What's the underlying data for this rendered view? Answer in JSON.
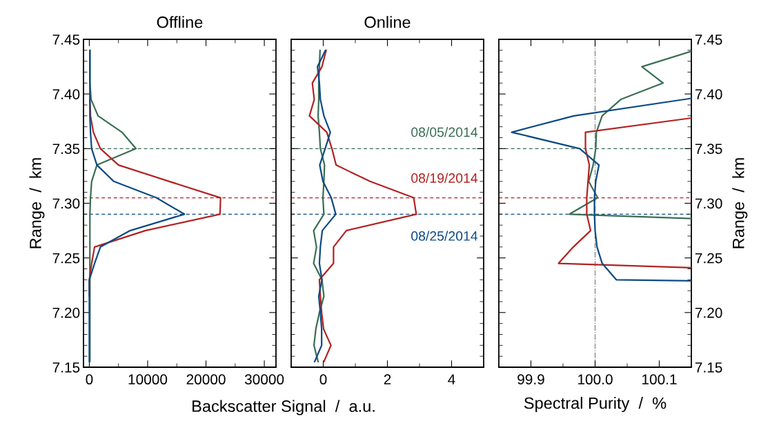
{
  "chart_data": [
    {
      "type": "line",
      "orientation": "horizontal",
      "title": "Offline",
      "xlabel": "Backscatter Signal  /  a.u.",
      "ylabel": "Range  /  km",
      "xlim": [
        -1000,
        32000
      ],
      "xticks": [
        0,
        {
          "value": 5000,
          "label": null
        },
        10000,
        {
          "value": 15000,
          "label": null
        },
        20000,
        {
          "value": 25000,
          "label": null
        },
        30000
      ],
      "ylim": [
        7.15,
        7.45
      ],
      "yticks": [
        7.15,
        {
          "value": 7.16,
          "label": null
        },
        {
          "value": 7.17,
          "label": null
        },
        {
          "value": 7.18,
          "label": null
        },
        {
          "value": 7.19,
          "label": null
        },
        {
          "value": 7.2,
          "label": "7.20"
        },
        {
          "value": 7.21,
          "label": null
        },
        {
          "value": 7.22,
          "label": null
        },
        {
          "value": 7.23,
          "label": null
        },
        {
          "value": 7.24,
          "label": null
        },
        7.25,
        {
          "value": 7.26,
          "label": null
        },
        {
          "value": 7.27,
          "label": null
        },
        {
          "value": 7.28,
          "label": null
        },
        {
          "value": 7.29,
          "label": null
        },
        {
          "value": 7.3,
          "label": "7.30"
        },
        {
          "value": 7.31,
          "label": null
        },
        {
          "value": 7.32,
          "label": null
        },
        {
          "value": 7.33,
          "label": null
        },
        {
          "value": 7.34,
          "label": null
        },
        7.35,
        {
          "value": 7.36,
          "label": null
        },
        {
          "value": 7.37,
          "label": null
        },
        {
          "value": 7.38,
          "label": null
        },
        {
          "value": 7.39,
          "label": null
        },
        {
          "value": 7.4,
          "label": "7.40"
        },
        {
          "value": 7.41,
          "label": null
        },
        {
          "value": 7.42,
          "label": null
        },
        {
          "value": 7.43,
          "label": null
        },
        {
          "value": 7.44,
          "label": null
        },
        7.45
      ],
      "ref_lines": [
        {
          "axis": "y",
          "value": 7.35,
          "color": "#3a6e54",
          "line_style": "dashed"
        },
        {
          "axis": "y",
          "value": 7.305,
          "color": "#b22222",
          "line_style": "dashed"
        },
        {
          "axis": "y",
          "value": 7.29,
          "color": "#0b4a85",
          "line_style": "dashed"
        }
      ],
      "series": [
        {
          "color": "#3a6e54",
          "x": [
            7.155,
            7.17,
            7.185,
            7.2,
            7.215,
            7.23,
            7.245,
            7.26,
            7.275,
            7.29,
            7.305,
            7.32,
            7.335,
            7.35,
            7.365,
            7.38,
            7.395,
            7.41,
            7.425,
            7.44
          ],
          "values": [
            100,
            100,
            100,
            100,
            100,
            100,
            100,
            100,
            100,
            100,
            200,
            400,
            1300,
            8000,
            5600,
            1500,
            300,
            100,
            100,
            100
          ]
        },
        {
          "color": "#b22222",
          "x": [
            7.215,
            7.23,
            7.245,
            7.26,
            7.275,
            7.29,
            7.305,
            7.32,
            7.335,
            7.35,
            7.365,
            7.38,
            7.395
          ],
          "values": [
            0,
            0,
            400,
            900,
            9600,
            22400,
            22500,
            13700,
            5000,
            1900,
            700,
            200,
            100
          ]
        },
        {
          "color": "#0b4a85",
          "x": [
            7.155,
            7.17,
            7.185,
            7.2,
            7.215,
            7.23,
            7.245,
            7.26,
            7.275,
            7.29,
            7.305,
            7.32,
            7.335,
            7.35,
            7.365,
            7.38,
            7.395,
            7.41,
            7.425,
            7.44
          ],
          "values": [
            0,
            0,
            0,
            0,
            0,
            0,
            900,
            1900,
            7000,
            16300,
            11500,
            4200,
            1300,
            400,
            200,
            100,
            100,
            100,
            100,
            100
          ]
        }
      ]
    },
    {
      "type": "line",
      "orientation": "horizontal",
      "title": "Online",
      "tick_labels": "x",
      "xlim": [
        -1,
        5
      ],
      "xticks": [
        0,
        {
          "value": 1,
          "label": null
        },
        2,
        {
          "value": 3,
          "label": null
        },
        4
      ],
      "ylim": [
        7.15,
        7.45
      ],
      "yticks": [
        7.15,
        {
          "value": 7.16,
          "label": null
        },
        {
          "value": 7.17,
          "label": null
        },
        {
          "value": 7.18,
          "label": null
        },
        {
          "value": 7.19,
          "label": null
        },
        {
          "value": 7.2,
          "label": null
        },
        {
          "value": 7.21,
          "label": null
        },
        {
          "value": 7.22,
          "label": null
        },
        {
          "value": 7.23,
          "label": null
        },
        {
          "value": 7.24,
          "label": null
        },
        7.25,
        {
          "value": 7.26,
          "label": null
        },
        {
          "value": 7.27,
          "label": null
        },
        {
          "value": 7.28,
          "label": null
        },
        {
          "value": 7.29,
          "label": null
        },
        {
          "value": 7.3,
          "label": null
        },
        {
          "value": 7.31,
          "label": null
        },
        {
          "value": 7.32,
          "label": null
        },
        {
          "value": 7.33,
          "label": null
        },
        {
          "value": 7.34,
          "label": null
        },
        7.35,
        {
          "value": 7.36,
          "label": null
        },
        {
          "value": 7.37,
          "label": null
        },
        {
          "value": 7.38,
          "label": null
        },
        {
          "value": 7.39,
          "label": null
        },
        {
          "value": 7.4,
          "label": null
        },
        {
          "value": 7.41,
          "label": null
        },
        {
          "value": 7.42,
          "label": null
        },
        {
          "value": 7.43,
          "label": null
        },
        {
          "value": 7.44,
          "label": null
        },
        7.45
      ],
      "ref_lines": [
        {
          "axis": "y",
          "value": 7.35,
          "color": "#3a6e54",
          "line_style": "dashed"
        },
        {
          "axis": "y",
          "value": 7.305,
          "color": "#b22222",
          "line_style": "dashed"
        },
        {
          "axis": "y",
          "value": 7.29,
          "color": "#0b4a85",
          "line_style": "dashed"
        }
      ],
      "series": [
        {
          "name": "08/05/2014",
          "color": "#3a6e54",
          "x": [
            7.155,
            7.17,
            7.185,
            7.2,
            7.215,
            7.23,
            7.245,
            7.26,
            7.275,
            7.29,
            7.305,
            7.32,
            7.335,
            7.35,
            7.365,
            7.38,
            7.395,
            7.41,
            7.425,
            7.44
          ],
          "values": [
            -0.16,
            -0.29,
            -0.23,
            -0.12,
            0.02,
            -0.04,
            -0.3,
            -0.21,
            -0.3,
            0.02,
            -0.01,
            0.02,
            0.04,
            -0.09,
            -0.12,
            -0.16,
            -0.14,
            -0.14,
            -0.12,
            -0.1
          ]
        },
        {
          "name": "08/19/2014",
          "color": "#b22222",
          "x": [
            7.155,
            7.17,
            7.185,
            7.2,
            7.215,
            7.23,
            7.245,
            7.26,
            7.275,
            7.29,
            7.305,
            7.32,
            7.335,
            7.35,
            7.365,
            7.38,
            7.395,
            7.41,
            7.425,
            7.44
          ],
          "values": [
            0.02,
            0.24,
            0.01,
            -0.05,
            -0.09,
            -0.12,
            0.32,
            0.32,
            0.72,
            2.9,
            2.82,
            1.46,
            0.4,
            0.27,
            0.11,
            -0.43,
            -0.28,
            -0.34,
            -0.04,
            0.09
          ]
        },
        {
          "name": "08/25/2014",
          "color": "#0b4a85",
          "x": [
            7.155,
            7.17,
            7.185,
            7.2,
            7.215,
            7.23,
            7.245,
            7.26,
            7.275,
            7.29,
            7.305,
            7.32,
            7.335,
            7.35,
            7.365,
            7.38,
            7.395,
            7.41,
            7.425,
            7.44
          ],
          "values": [
            -0.27,
            -0.05,
            -0.05,
            -0.09,
            -0.14,
            -0.04,
            -0.12,
            -0.09,
            -0.03,
            0.39,
            0.25,
            -0.01,
            -0.11,
            0.06,
            0.22,
            0.02,
            -0.09,
            -0.12,
            -0.18,
            0.07
          ]
        }
      ]
    },
    {
      "type": "line",
      "orientation": "horizontal",
      "xlabel": "Spectral Purity  /  %",
      "ylabel": "Range  /  km",
      "xlim": [
        99.85,
        100.15
      ],
      "xticks": [
        {
          "value": 99.9,
          "label": "99.9"
        },
        {
          "value": 99.95,
          "label": null
        },
        {
          "value": 100.0,
          "label": "100.0"
        },
        {
          "value": 100.05,
          "label": null
        },
        {
          "value": 100.1,
          "label": "100.1"
        }
      ],
      "ylim": [
        7.15,
        7.45
      ],
      "yticks": [
        7.15,
        {
          "value": 7.16,
          "label": null
        },
        {
          "value": 7.17,
          "label": null
        },
        {
          "value": 7.18,
          "label": null
        },
        {
          "value": 7.19,
          "label": null
        },
        {
          "value": 7.2,
          "label": "7.20"
        },
        {
          "value": 7.21,
          "label": null
        },
        {
          "value": 7.22,
          "label": null
        },
        {
          "value": 7.23,
          "label": null
        },
        {
          "value": 7.24,
          "label": null
        },
        7.25,
        {
          "value": 7.26,
          "label": null
        },
        {
          "value": 7.27,
          "label": null
        },
        {
          "value": 7.28,
          "label": null
        },
        {
          "value": 7.29,
          "label": null
        },
        {
          "value": 7.3,
          "label": "7.30"
        },
        {
          "value": 7.31,
          "label": null
        },
        {
          "value": 7.32,
          "label": null
        },
        {
          "value": 7.33,
          "label": null
        },
        {
          "value": 7.34,
          "label": null
        },
        7.35,
        {
          "value": 7.36,
          "label": null
        },
        {
          "value": 7.37,
          "label": null
        },
        {
          "value": 7.38,
          "label": null
        },
        {
          "value": 7.39,
          "label": null
        },
        {
          "value": 7.4,
          "label": "7.40"
        },
        {
          "value": 7.41,
          "label": null
        },
        {
          "value": 7.42,
          "label": null
        },
        {
          "value": 7.43,
          "label": null
        },
        {
          "value": 7.44,
          "label": null
        },
        7.45
      ],
      "ref_lines": [
        {
          "axis": "y",
          "value": 7.35,
          "color": "#3a6e54",
          "line_style": "dashed"
        },
        {
          "axis": "y",
          "value": 7.305,
          "color": "#b22222",
          "line_style": "dashed"
        },
        {
          "axis": "y",
          "value": 7.29,
          "color": "#0b4a85",
          "line_style": "dashed"
        },
        {
          "axis": "x",
          "value": 100.0,
          "color": "#808080",
          "line_style": "dashdot"
        }
      ],
      "series": [
        {
          "color": "#3a6e54",
          "x": [
            7.286,
            7.29,
            7.305,
            7.32,
            7.335,
            7.35,
            7.365,
            7.38,
            7.395,
            7.41,
            7.425,
            7.439
          ],
          "values": [
            100.15,
            99.96,
            100.004,
            99.99,
            99.997,
            100.001,
            100.002,
            100.011,
            100.04,
            100.106,
            100.073,
            100.15
          ]
        },
        {
          "color": "#b22222",
          "x": [
            7.241,
            7.245,
            7.26,
            7.275,
            7.29,
            7.305,
            7.32,
            7.335,
            7.35,
            7.365,
            7.378
          ],
          "values": [
            100.15,
            99.943,
            99.966,
            99.993,
            99.987,
            99.987,
            99.989,
            99.991,
            99.985,
            99.985,
            100.15
          ]
        },
        {
          "color": "#0b4a85",
          "x": [
            7.229,
            7.23,
            7.245,
            7.26,
            7.275,
            7.29,
            7.305,
            7.32,
            7.335,
            7.35,
            7.365,
            7.38,
            7.396
          ],
          "values": [
            100.15,
            100.033,
            100.011,
            100.003,
            100.0,
            99.999,
            99.999,
            100.001,
            100.006,
            99.976,
            99.87,
            99.967,
            100.15
          ]
        }
      ]
    }
  ]
}
